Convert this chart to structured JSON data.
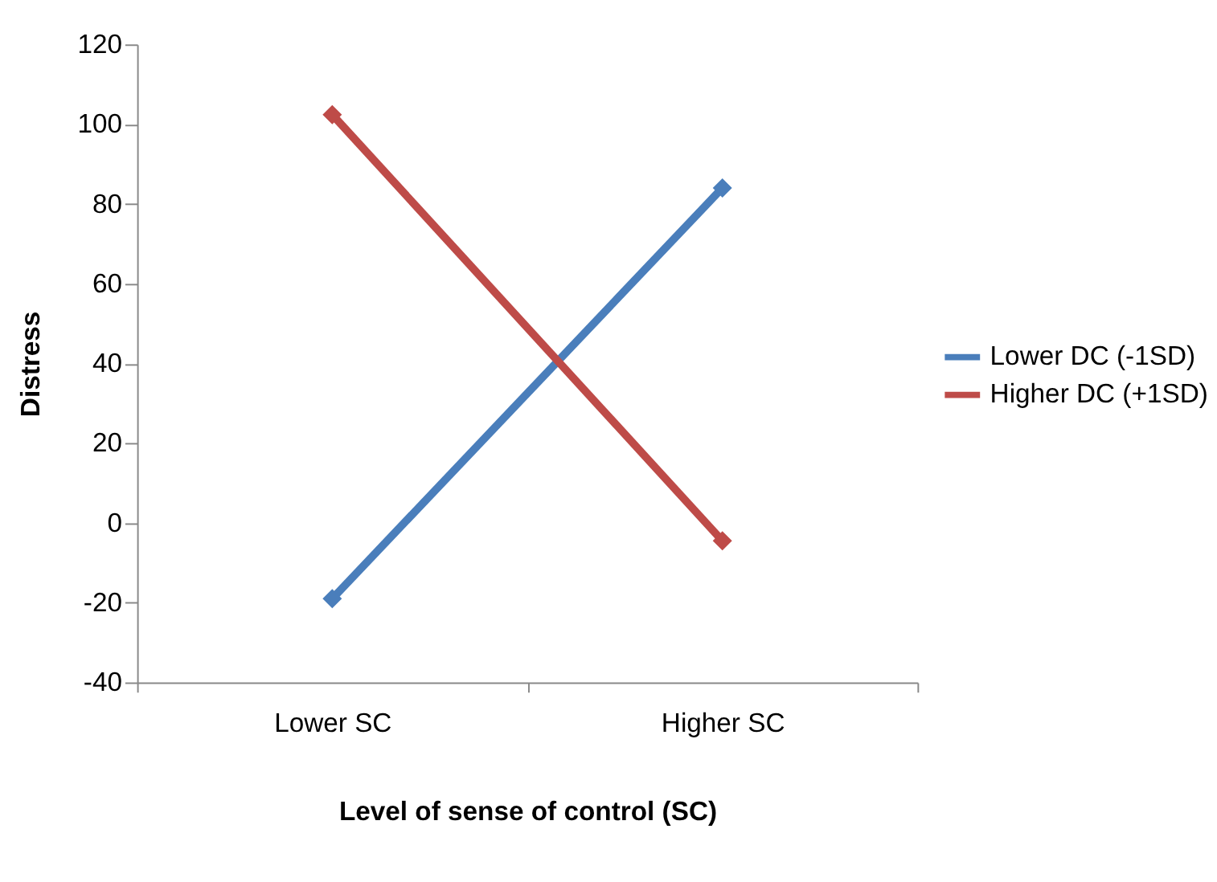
{
  "chart_data": {
    "type": "line",
    "xlabel": "Level of sense of control (SC)",
    "ylabel": "Distress",
    "categories": [
      "Lower SC",
      "Higher SC"
    ],
    "series": [
      {
        "name": "Lower DC (-1SD)",
        "color": "#4a7ebb",
        "values": [
          -19,
          84
        ]
      },
      {
        "name": "Higher DC (+1SD)",
        "color": "#be4b48",
        "values": [
          102.4,
          -4.5
        ]
      }
    ],
    "ylim": [
      -40,
      120
    ],
    "yticks": [
      -40,
      -20,
      0,
      20,
      40,
      60,
      80,
      100,
      120
    ],
    "grid": false,
    "legend": "right",
    "marker": "diamond",
    "line_style": "solid"
  }
}
